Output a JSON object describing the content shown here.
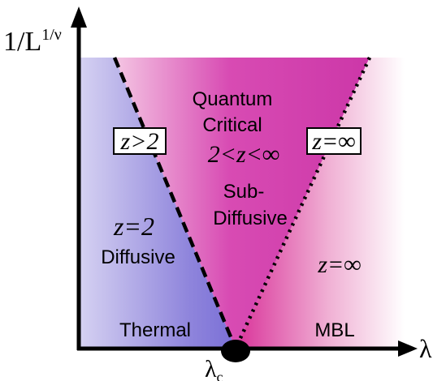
{
  "axes": {
    "y_label_main": "1/L",
    "y_label_exp": "1/ν",
    "x_label": "λ",
    "critical_main": "λ",
    "critical_sub": "c"
  },
  "regions": {
    "critical": {
      "line1": "Quantum",
      "line2": "Critical",
      "z_range": "2<z<∞",
      "line3": "Sub-",
      "line4": "Diffusive"
    },
    "thermal": {
      "z_value": "z=2",
      "transport": "Diffusive",
      "name": "Thermal"
    },
    "mbl": {
      "z_value": "z=∞",
      "name": "MBL"
    }
  },
  "boundaries": {
    "left_label": "z>2",
    "right_label": "z=∞"
  },
  "colors": {
    "thermal": "#8a7fdb",
    "critical": "#d23fae",
    "mbl": "#e8a6cc",
    "point": "#000000"
  }
}
